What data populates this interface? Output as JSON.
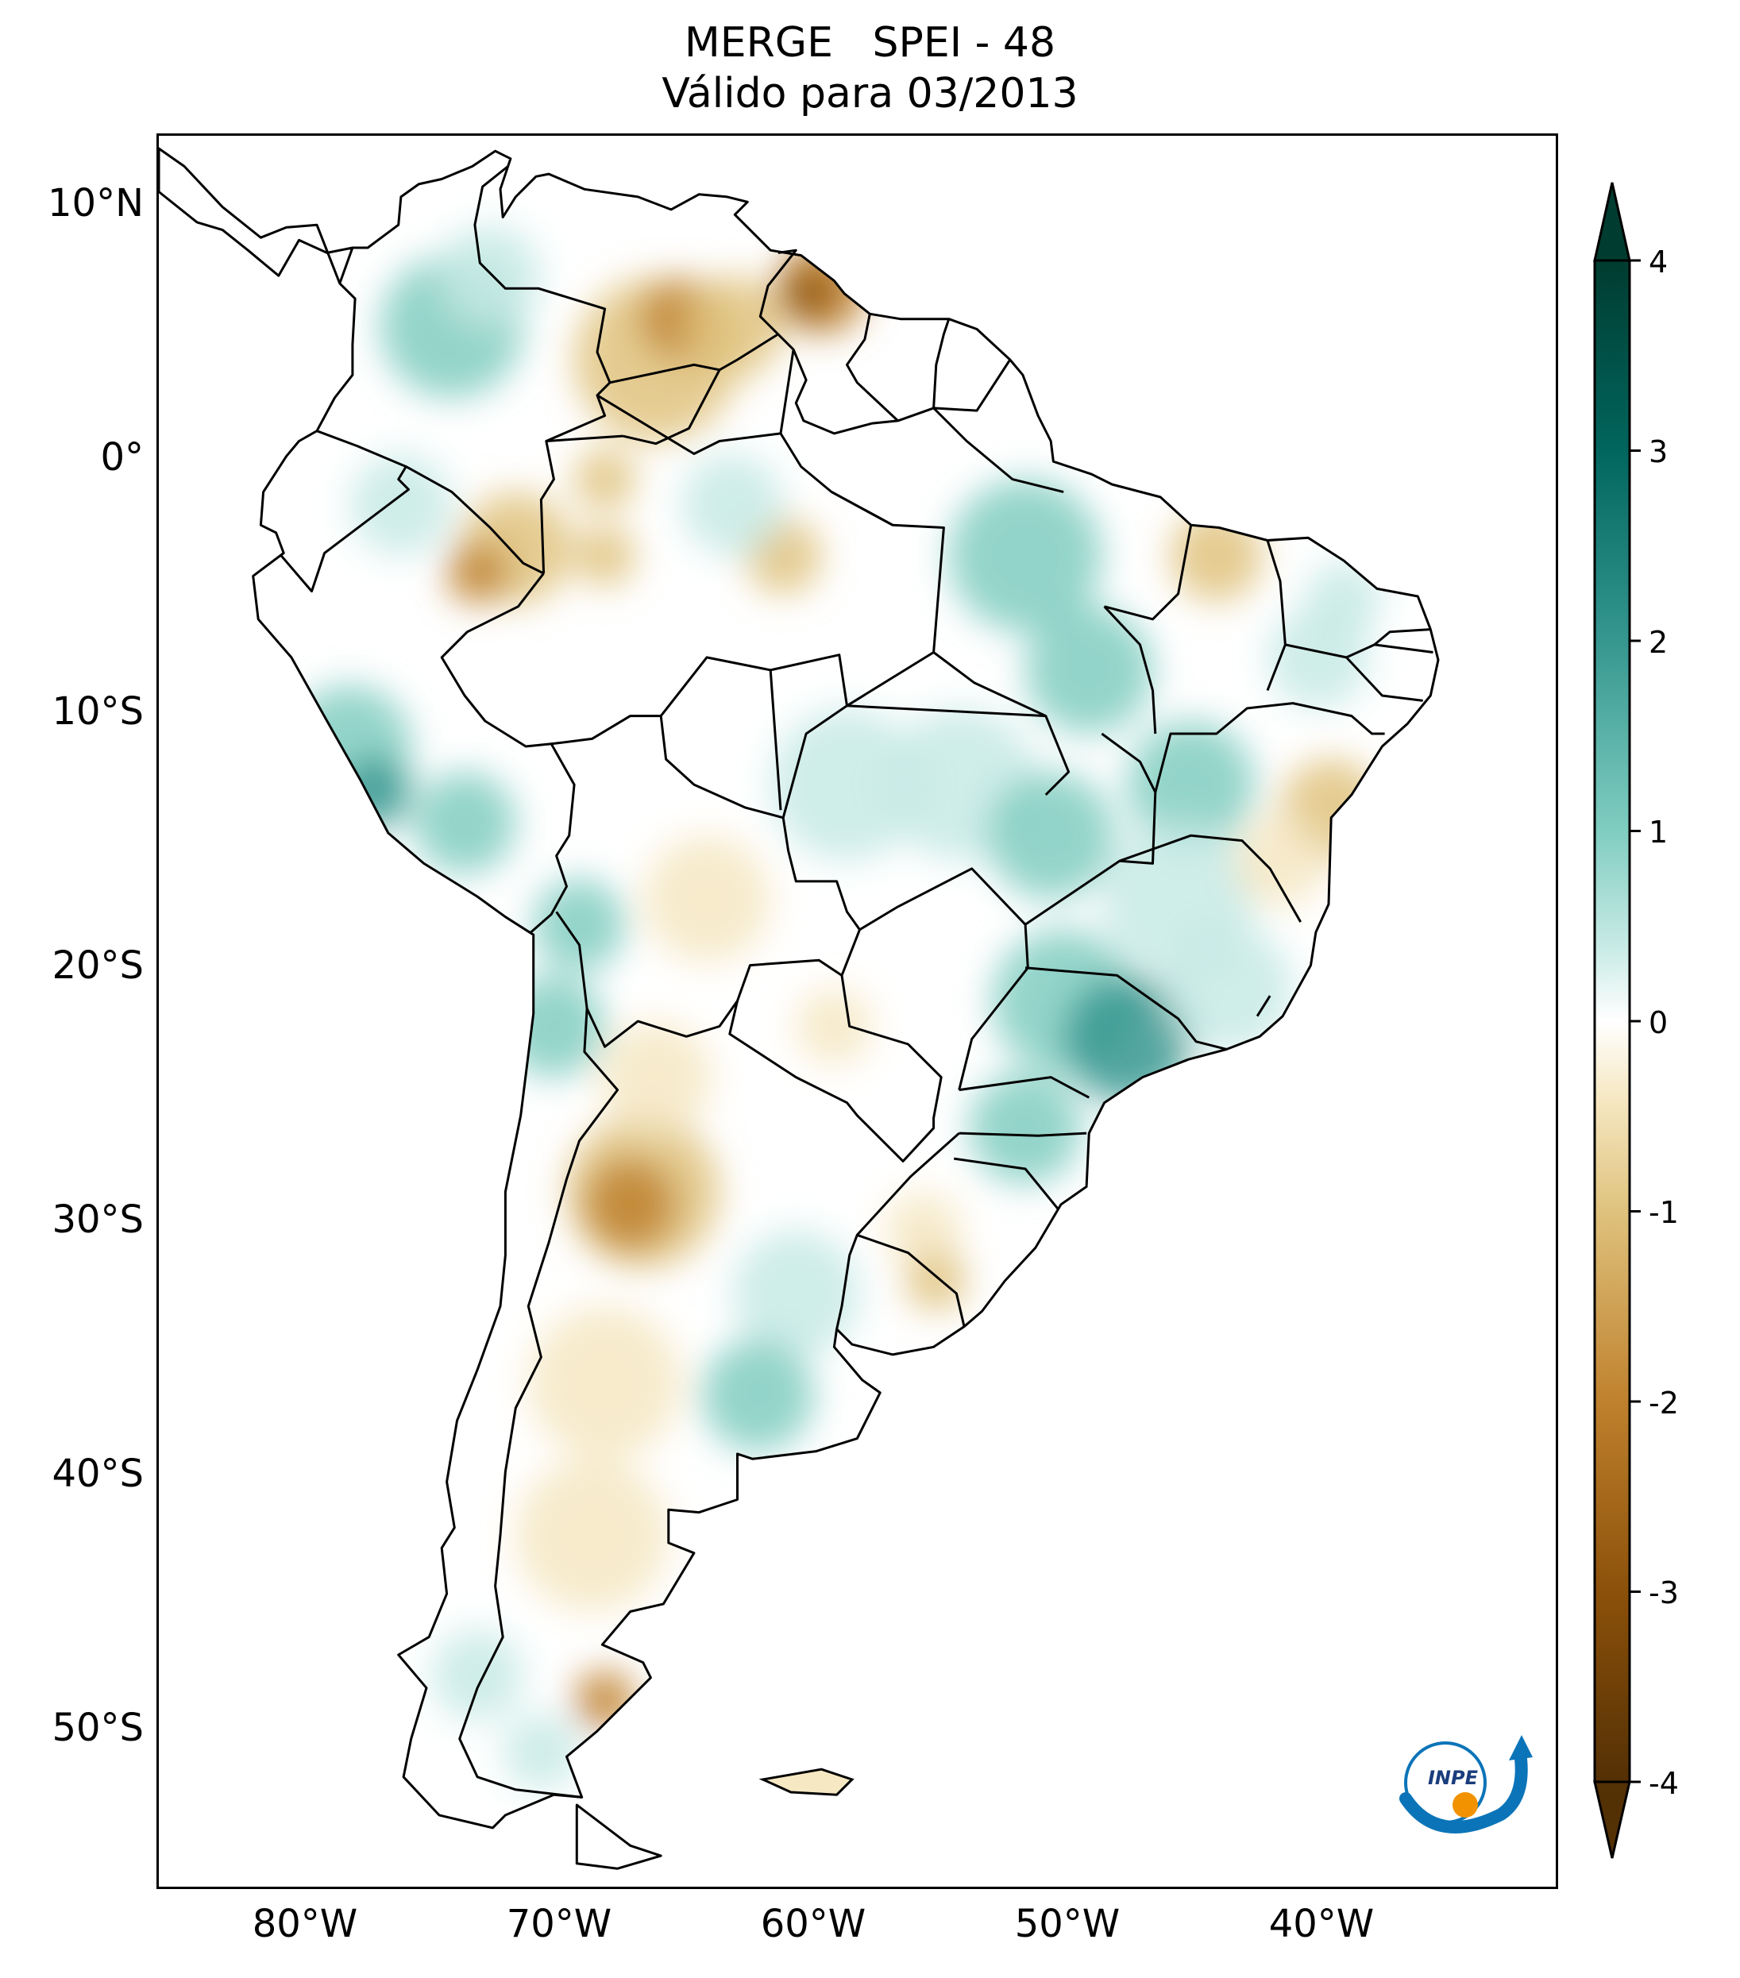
{
  "title": {
    "line1": "MERGE   SPEI - 48",
    "line2": "Válido para 03/2013"
  },
  "map": {
    "lat_ticks": [
      "10°N",
      "0°",
      "10°S",
      "20°S",
      "30°S",
      "40°S",
      "50°S"
    ],
    "lon_ticks": [
      "80°W",
      "70°W",
      "60°W",
      "50°W",
      "40°W"
    ],
    "extent": {
      "lon": [
        -85,
        -30
      ],
      "lat": [
        -56,
        13
      ]
    }
  },
  "colorbar": {
    "labels": [
      "4",
      "3",
      "2",
      "1",
      "0",
      "-1",
      "-2",
      "-3",
      "-4"
    ],
    "range": [
      -4,
      4
    ],
    "colors": {
      "high": "#003c30",
      "mid_high": "#35978f",
      "light_high": "#c7eae5",
      "neutral": "#ffffff",
      "light_low": "#f6e8c3",
      "mid_low": "#bf812d",
      "low": "#543005"
    }
  },
  "logo": {
    "text": "INPE"
  }
}
